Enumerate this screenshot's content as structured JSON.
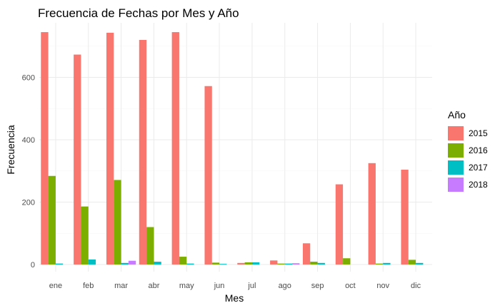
{
  "chart_data": {
    "type": "bar",
    "title": "Frecuencia de Fechas por Mes y Año",
    "xlabel": "Mes",
    "ylabel": "Frecuencia",
    "categories": [
      "ene",
      "feb",
      "mar",
      "abr",
      "may",
      "jun",
      "jul",
      "ago",
      "sep",
      "oct",
      "nov",
      "dic"
    ],
    "yticks": [
      0,
      200,
      400,
      600
    ],
    "ylim": [
      0,
      760
    ],
    "grid": true,
    "legend": {
      "title": "Año",
      "position": "right"
    },
    "series": [
      {
        "name": "2015",
        "color": "#F8766D",
        "values": [
          745,
          673,
          743,
          720,
          745,
          572,
          5,
          13,
          68,
          257,
          325,
          304
        ]
      },
      {
        "name": "2016",
        "color": "#7CAE00",
        "values": [
          284,
          186,
          271,
          120,
          25,
          6,
          7,
          3,
          9,
          20,
          3,
          15
        ]
      },
      {
        "name": "2017",
        "color": "#00BFC4",
        "values": [
          3,
          16,
          5,
          9,
          3,
          2,
          7,
          3,
          5,
          0,
          5,
          5
        ]
      },
      {
        "name": "2018",
        "color": "#C77CFF",
        "values": [
          0,
          0,
          12,
          0,
          0,
          0,
          0,
          4,
          0,
          0,
          0,
          0
        ]
      }
    ]
  }
}
